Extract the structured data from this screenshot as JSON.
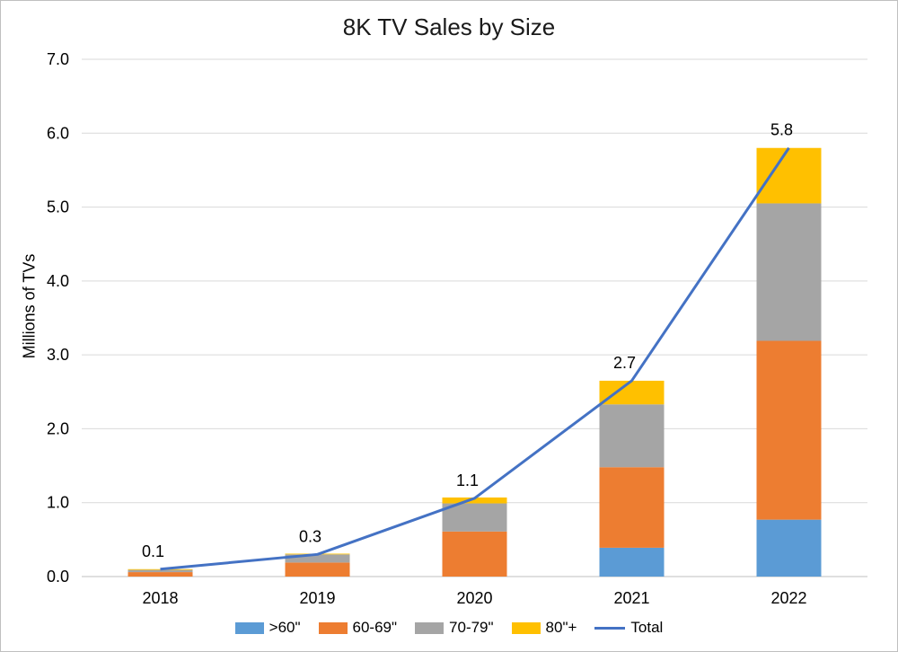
{
  "chart_data": {
    "type": "bar",
    "stacked": true,
    "title": "8K TV Sales by Size",
    "xlabel": "",
    "ylabel": "Millions of TVs",
    "ylim": [
      0,
      7
    ],
    "yticks": [
      "0.0",
      "1.0",
      "2.0",
      "3.0",
      "4.0",
      "5.0",
      "6.0",
      "7.0"
    ],
    "grid": true,
    "legend_position": "bottom",
    "categories": [
      "2018",
      "2019",
      "2020",
      "2021",
      "2022"
    ],
    "series": [
      {
        "name": ">60\"",
        "type": "bar",
        "color": "#5b9bd5",
        "values": [
          0.0,
          0.0,
          0.0,
          0.39,
          0.77
        ]
      },
      {
        "name": "60-69\"",
        "type": "bar",
        "color": "#ed7d31",
        "values": [
          0.06,
          0.19,
          0.61,
          1.09,
          2.42
        ]
      },
      {
        "name": "70-79\"",
        "type": "bar",
        "color": "#a5a5a5",
        "values": [
          0.03,
          0.11,
          0.38,
          0.85,
          1.86
        ]
      },
      {
        "name": "80\"+",
        "type": "bar",
        "color": "#ffc000",
        "values": [
          0.01,
          0.01,
          0.08,
          0.32,
          0.75
        ]
      },
      {
        "name": "Total",
        "type": "line",
        "color": "#4472c4",
        "values": [
          0.1,
          0.3,
          1.06,
          2.65,
          5.8
        ]
      }
    ],
    "data_labels": [
      "0.1",
      "0.3",
      "1.1",
      "2.7",
      "5.8"
    ]
  }
}
